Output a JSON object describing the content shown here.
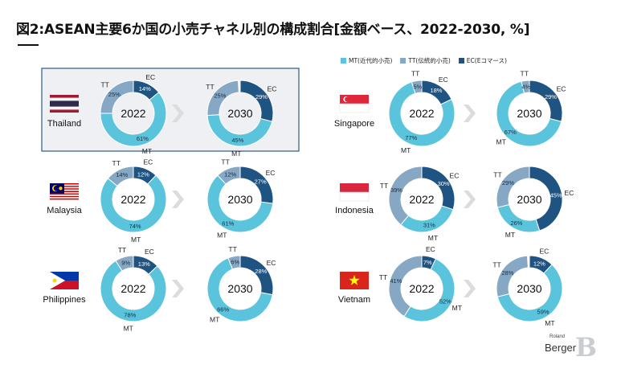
{
  "title": "図2:ASEAN主要6か国の小売チャネル別の構成割合[金額ベース、2022-2030, %]",
  "legend": [
    {
      "label": "MT(近代的小売)",
      "color": "#5bc4dd"
    },
    {
      "label": "TT(伝統的小売)",
      "color": "#87a8c4"
    },
    {
      "label": "EC(Eコマース)",
      "color": "#1f5382"
    }
  ],
  "brand": {
    "small": "Roland",
    "big": "Berger",
    "mark": "B"
  },
  "chart_data": {
    "type": "pie",
    "style": "donut",
    "series_names": [
      "MT",
      "TT",
      "EC"
    ],
    "colors": {
      "MT": "#5bc4dd",
      "TT": "#87a8c4",
      "EC": "#1f5382"
    },
    "highlighted_country": "Thailand",
    "countries": [
      {
        "name": "Thailand",
        "flag": "thailand",
        "charts": [
          {
            "year": "2022",
            "MT": 61,
            "TT": 25,
            "EC": 14
          },
          {
            "year": "2030",
            "MT": 45,
            "TT": 25,
            "EC": 29
          }
        ]
      },
      {
        "name": "Singapore",
        "flag": "singapore",
        "charts": [
          {
            "year": "2022",
            "MT": 77,
            "TT": 5,
            "EC": 18
          },
          {
            "year": "2030",
            "MT": 67,
            "TT": 4,
            "EC": 29
          }
        ]
      },
      {
        "name": "Malaysia",
        "flag": "malaysia",
        "charts": [
          {
            "year": "2022",
            "MT": 74,
            "TT": 14,
            "EC": 12
          },
          {
            "year": "2030",
            "MT": 61,
            "TT": 12,
            "EC": 27
          }
        ]
      },
      {
        "name": "Indonesia",
        "flag": "indonesia",
        "charts": [
          {
            "year": "2022",
            "MT": 31,
            "TT": 39,
            "EC": 30
          },
          {
            "year": "2030",
            "MT": 26,
            "TT": 29,
            "EC": 45
          }
        ]
      },
      {
        "name": "Philippines",
        "flag": "philippines",
        "charts": [
          {
            "year": "2022",
            "MT": 78,
            "TT": 9,
            "EC": 13
          },
          {
            "year": "2030",
            "MT": 66,
            "TT": 6,
            "EC": 28
          }
        ]
      },
      {
        "name": "Vietnam",
        "flag": "vietnam",
        "charts": [
          {
            "year": "2022",
            "MT": 52,
            "TT": 41,
            "EC": 7
          },
          {
            "year": "2030",
            "MT": 59,
            "TT": 28,
            "EC": 12
          }
        ]
      }
    ]
  }
}
